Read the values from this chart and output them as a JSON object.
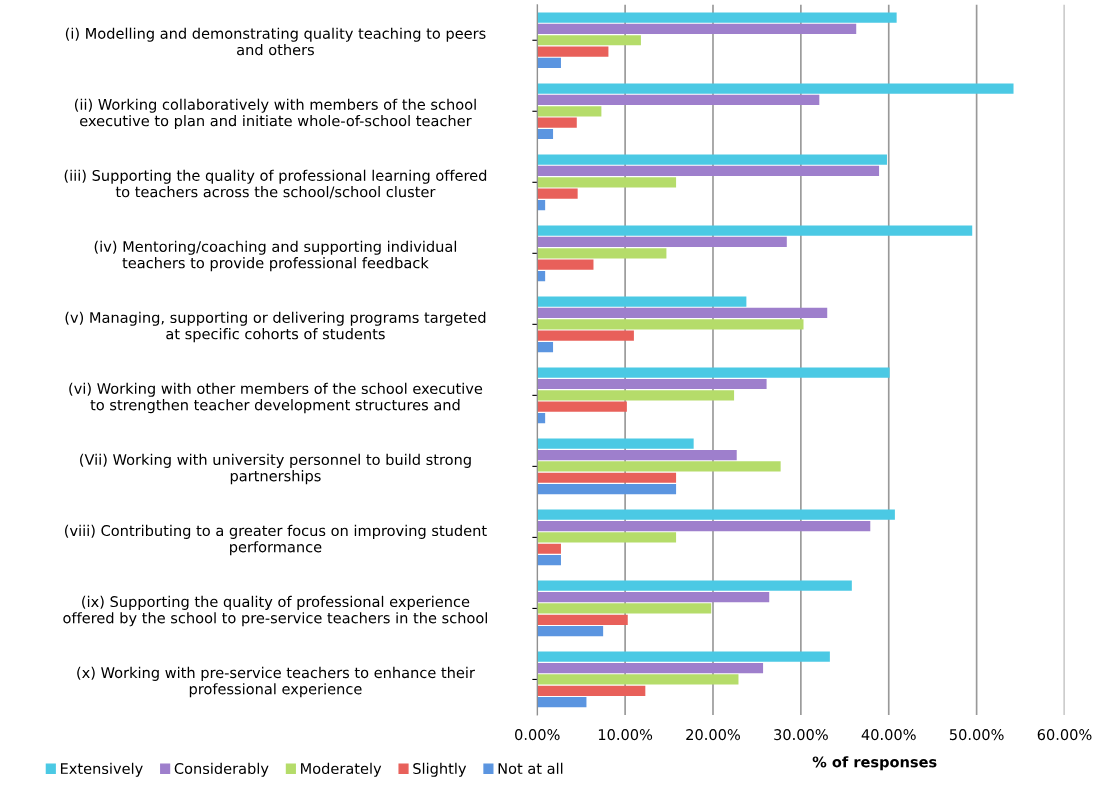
{
  "chart_data": {
    "type": "bar",
    "orientation": "horizontal",
    "xlabel": "% of responses",
    "categories": [
      "(i) Modelling and demonstrating quality teaching to peers\nand others",
      "(ii) Working collaboratively with members of the school\nexecutive to plan and initiate whole-of-school teacher",
      "(iii) Supporting the quality of professional learning offered\nto teachers across the school/school cluster",
      "(iv) Mentoring/coaching and supporting individual\nteachers to provide professional feedback",
      "(v) Managing, supporting or delivering programs targeted\nat specific cohorts of students",
      "(vi) Working with other members of the school executive\nto strengthen teacher development structures and",
      "(Vii) Working with university personnel to build strong\npartnerships",
      "(viii) Contributing to a greater focus on improving student\nperformance",
      "(ix) Supporting the quality of professional experience\noffered by the school to pre-service teachers in the school",
      "(x) Working with pre-service teachers to enhance their\nprofessional experience"
    ],
    "series": [
      {
        "name": "Extensively",
        "color": "#4bc9e4",
        "values": [
          40.9,
          54.2,
          39.8,
          49.5,
          23.8,
          40.1,
          17.8,
          40.7,
          35.8,
          33.3
        ]
      },
      {
        "name": "Considerably",
        "color": "#9e7fcc",
        "values": [
          36.3,
          32.1,
          38.9,
          28.4,
          33.0,
          26.1,
          22.7,
          37.9,
          26.4,
          25.7
        ]
      },
      {
        "name": "Moderately",
        "color": "#b5dc6a",
        "values": [
          11.8,
          7.3,
          15.8,
          14.7,
          30.3,
          22.4,
          27.7,
          15.8,
          19.8,
          22.9
        ]
      },
      {
        "name": "Slightly",
        "color": "#e8605a",
        "values": [
          8.1,
          4.5,
          4.6,
          6.4,
          11.0,
          10.2,
          15.8,
          2.7,
          10.3,
          12.3
        ]
      },
      {
        "name": "Not at all",
        "color": "#5b95e0",
        "values": [
          2.7,
          1.8,
          0.9,
          0.9,
          1.8,
          0.9,
          15.8,
          2.7,
          7.5,
          5.6
        ]
      }
    ],
    "xlim": [
      0,
      60
    ],
    "xticks": [
      {
        "value": 0,
        "label": "0.00%"
      },
      {
        "value": 10,
        "label": "10.00%"
      },
      {
        "value": 20,
        "label": "20.00%"
      },
      {
        "value": 30,
        "label": "30.00%"
      },
      {
        "value": 40,
        "label": "40.00%"
      },
      {
        "value": 50,
        "label": "50.00%"
      },
      {
        "value": 60,
        "label": "60.00%"
      }
    ],
    "grid": "x",
    "legend": "bottom"
  }
}
